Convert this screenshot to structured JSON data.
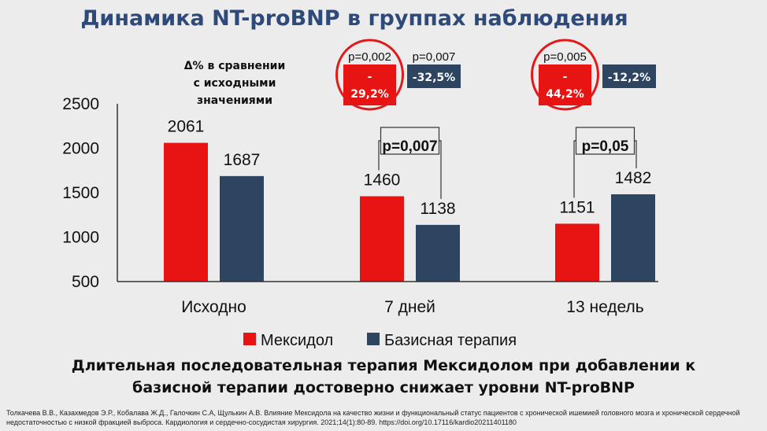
{
  "title": "Динамика NT-proBNP  в группах наблюдения",
  "delta_label": [
    "Δ% в сравнении",
    "с исходными",
    "значениями"
  ],
  "conclusion": [
    "Длительная последовательная терапия Мексидолом при добавлении к",
    "базисной терапии достоверно снижает уровни NT-proBNP"
  ],
  "reference": "Толкачева В.В., Казахмедов Э.Р., Кобалава Ж.Д., Галочкин С.А, Щулькин А.В. Влияние Мексидола на качество жизни и функциональный статус пациентов с хронической ишемией головного мозга и хронической сердечной недостаточностью с низкой фракцией выброса. Кардиология и сердечно-сосудистая хирургия. 2021;14(1):80-89. https://doi.org/10.17116/kardio20211401180",
  "colors": {
    "mexidol": "#e81313",
    "basic": "#2e4562",
    "title": "#2e4a7a",
    "circle": "#e01a1a"
  },
  "chart_data": {
    "type": "bar",
    "categories": [
      "Исходно",
      "7 дней",
      "13 недель"
    ],
    "series": [
      {
        "name": "Мексидол",
        "values": [
          2061,
          1460,
          1151
        ]
      },
      {
        "name": "Базисная терапия",
        "values": [
          1687,
          1138,
          1482
        ]
      }
    ],
    "ylim": [
      500,
      2500
    ],
    "yticks": [
      500,
      1000,
      1500,
      2000,
      2500
    ],
    "legend": "bottom",
    "grid": false,
    "significance": [
      {
        "category": 1,
        "label": "p=0,007"
      },
      {
        "category": 2,
        "label": "p=0,05"
      }
    ],
    "delta_boxes": [
      {
        "category": 1,
        "mexidol_p": "p=0,002",
        "mexidol_delta": [
          "-",
          "29,2%"
        ],
        "basic_p": "p=0,007",
        "basic_delta": "-32,5%"
      },
      {
        "category": 2,
        "mexidol_p": "p=0,005",
        "mexidol_delta": [
          "-",
          "44,2%"
        ],
        "basic_delta": "-12,2%"
      }
    ]
  }
}
